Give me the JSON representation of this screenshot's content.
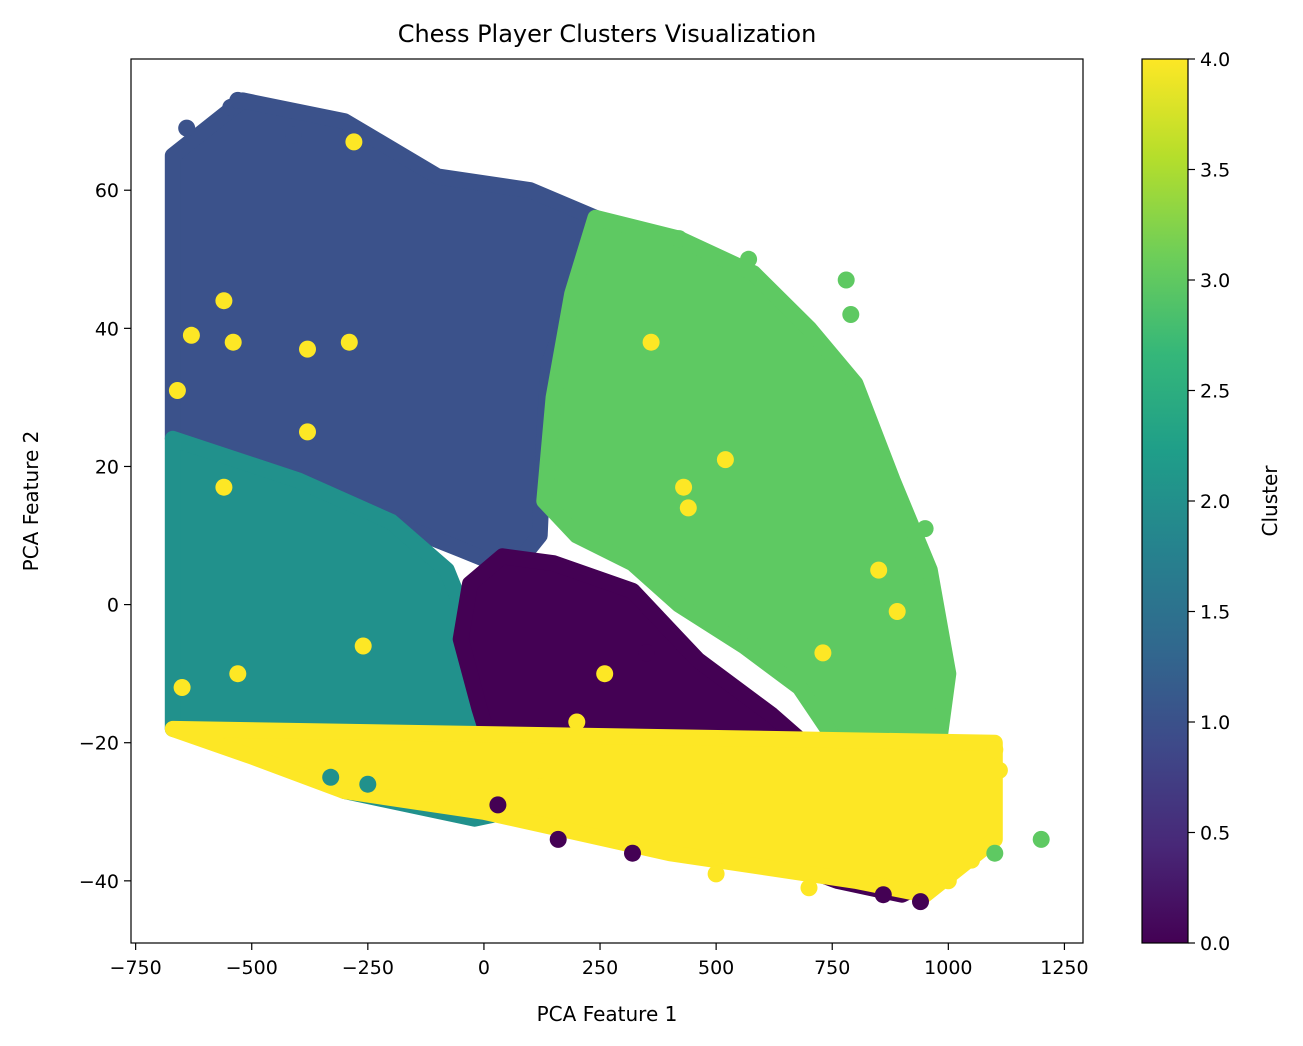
{
  "chart_data": {
    "type": "scatter",
    "title": "Chess Player Clusters Visualization",
    "xlabel": "PCA Feature 1",
    "ylabel": "PCA Feature 2",
    "xlim": [
      -760,
      1290
    ],
    "ylim": [
      -49,
      79
    ],
    "xticks": [
      -750,
      -500,
      -250,
      0,
      250,
      500,
      750,
      1000,
      1250
    ],
    "xtick_labels": [
      "−750",
      "−500",
      "−250",
      "0",
      "250",
      "500",
      "750",
      "1000",
      "1250"
    ],
    "yticks": [
      -40,
      -20,
      0,
      20,
      40,
      60
    ],
    "ytick_labels": [
      "−40",
      "−20",
      "0",
      "20",
      "40",
      "60"
    ],
    "grid": false,
    "colorbar": {
      "label": "Cluster",
      "range": [
        0.0,
        4.0
      ],
      "ticks": [
        0.0,
        0.5,
        1.0,
        1.5,
        2.0,
        2.5,
        3.0,
        3.5,
        4.0
      ],
      "tick_labels": [
        "0.0",
        "0.5",
        "1.0",
        "1.5",
        "2.0",
        "2.5",
        "3.0",
        "3.5",
        "4.0"
      ],
      "colormap": "viridis",
      "stops": [
        "#440154",
        "#482878",
        "#3e4989",
        "#31688e",
        "#26828e",
        "#1f9e89",
        "#35b779",
        "#6ece58",
        "#b5de2b",
        "#fde725"
      ]
    },
    "clusters": [
      {
        "cluster": 1,
        "color": "#3b528b",
        "region": [
          [
            -670,
            65
          ],
          [
            -520,
            73
          ],
          [
            -300,
            70
          ],
          [
            -100,
            62
          ],
          [
            100,
            60
          ],
          [
            240,
            56
          ],
          [
            200,
            45
          ],
          [
            140,
            35
          ],
          [
            130,
            25
          ],
          [
            120,
            10
          ],
          [
            60,
            5
          ],
          [
            -50,
            8
          ],
          [
            -200,
            12
          ],
          [
            -400,
            18
          ],
          [
            -670,
            24
          ]
        ]
      },
      {
        "cluster": 3,
        "color": "#5ec962",
        "region": [
          [
            240,
            56
          ],
          [
            420,
            53
          ],
          [
            580,
            48
          ],
          [
            700,
            40
          ],
          [
            800,
            32
          ],
          [
            880,
            18
          ],
          [
            960,
            5
          ],
          [
            1000,
            -10
          ],
          [
            980,
            -20
          ],
          [
            930,
            -33
          ],
          [
            860,
            -33
          ],
          [
            780,
            -22
          ],
          [
            680,
            -12
          ],
          [
            560,
            -6
          ],
          [
            420,
            0
          ],
          [
            320,
            6
          ],
          [
            200,
            10
          ],
          [
            130,
            15
          ],
          [
            150,
            30
          ],
          [
            190,
            45
          ]
        ]
      },
      {
        "cluster": 2,
        "color": "#21918c",
        "region": [
          [
            -670,
            24
          ],
          [
            -400,
            18
          ],
          [
            -200,
            12
          ],
          [
            -80,
            5
          ],
          [
            -20,
            -5
          ],
          [
            30,
            -20
          ],
          [
            50,
            -30
          ],
          [
            -20,
            -31
          ],
          [
            -300,
            -27
          ],
          [
            -500,
            -21
          ],
          [
            -670,
            -18
          ]
        ]
      },
      {
        "cluster": 0,
        "color": "#440154",
        "region": [
          [
            -30,
            3
          ],
          [
            40,
            7
          ],
          [
            150,
            6
          ],
          [
            320,
            2
          ],
          [
            460,
            -8
          ],
          [
            620,
            -16
          ],
          [
            790,
            -26
          ],
          [
            900,
            -34
          ],
          [
            960,
            -40
          ],
          [
            900,
            -42
          ],
          [
            760,
            -40
          ],
          [
            600,
            -36
          ],
          [
            400,
            -34
          ],
          [
            200,
            -31
          ],
          [
            50,
            -28
          ],
          [
            -10,
            -15
          ],
          [
            -50,
            -5
          ]
        ]
      },
      {
        "cluster": 4,
        "color": "#fde725",
        "band": [
          [
            -670,
            -18
          ],
          [
            -500,
            -22
          ],
          [
            -300,
            -27
          ],
          [
            0,
            -30
          ],
          [
            200,
            -33
          ],
          [
            400,
            -36
          ],
          [
            600,
            -38
          ],
          [
            800,
            -40
          ],
          [
            950,
            -42
          ],
          [
            1100,
            -34
          ],
          [
            1100,
            -20
          ]
        ]
      }
    ],
    "points": [
      {
        "x": 1200,
        "y": -34,
        "cluster": 3
      },
      {
        "x": 1100,
        "y": -21,
        "cluster": 4
      },
      {
        "x": 1110,
        "y": -24,
        "cluster": 4
      },
      {
        "x": 1100,
        "y": -36,
        "cluster": 3
      },
      {
        "x": 1050,
        "y": -37,
        "cluster": 4
      },
      {
        "x": 1000,
        "y": -40,
        "cluster": 4
      },
      {
        "x": 940,
        "y": -43,
        "cluster": 0
      },
      {
        "x": 960,
        "y": -3,
        "cluster": 3
      },
      {
        "x": 950,
        "y": 11,
        "cluster": 3
      },
      {
        "x": 780,
        "y": 47,
        "cluster": 3
      },
      {
        "x": 790,
        "y": 42,
        "cluster": 3
      },
      {
        "x": 900,
        "y": 12,
        "cluster": 3
      },
      {
        "x": 890,
        "y": -1,
        "cluster": 4
      },
      {
        "x": 850,
        "y": 5,
        "cluster": 4
      },
      {
        "x": 420,
        "y": 53,
        "cluster": 3
      },
      {
        "x": 570,
        "y": 50,
        "cluster": 3
      },
      {
        "x": 520,
        "y": 21,
        "cluster": 4
      },
      {
        "x": 440,
        "y": 14,
        "cluster": 4
      },
      {
        "x": 430,
        "y": 17,
        "cluster": 4
      },
      {
        "x": 360,
        "y": 38,
        "cluster": 4
      },
      {
        "x": 730,
        "y": -7,
        "cluster": 4
      },
      {
        "x": 510,
        "y": -30,
        "cluster": 4
      },
      {
        "x": 500,
        "y": -39,
        "cluster": 4
      },
      {
        "x": 350,
        "y": -7,
        "cluster": 0
      },
      {
        "x": 260,
        "y": -10,
        "cluster": 4
      },
      {
        "x": 200,
        "y": -17,
        "cluster": 4
      },
      {
        "x": 120,
        "y": -24,
        "cluster": 4
      },
      {
        "x": -545,
        "y": 72,
        "cluster": 1
      },
      {
        "x": -530,
        "y": 73,
        "cluster": 1
      },
      {
        "x": -640,
        "y": 69,
        "cluster": 1
      },
      {
        "x": -280,
        "y": 67,
        "cluster": 4
      },
      {
        "x": -410,
        "y": 68,
        "cluster": 1
      },
      {
        "x": -560,
        "y": 44,
        "cluster": 4
      },
      {
        "x": -630,
        "y": 39,
        "cluster": 4
      },
      {
        "x": -380,
        "y": 37,
        "cluster": 4
      },
      {
        "x": -540,
        "y": 38,
        "cluster": 4
      },
      {
        "x": -380,
        "y": 25,
        "cluster": 4
      },
      {
        "x": -290,
        "y": 38,
        "cluster": 4
      },
      {
        "x": -560,
        "y": 17,
        "cluster": 4
      },
      {
        "x": -660,
        "y": 31,
        "cluster": 4
      },
      {
        "x": -260,
        "y": -6,
        "cluster": 4
      },
      {
        "x": -650,
        "y": -12,
        "cluster": 4
      },
      {
        "x": -530,
        "y": -10,
        "cluster": 4
      },
      {
        "x": -250,
        "y": -26,
        "cluster": 2
      },
      {
        "x": -330,
        "y": -25,
        "cluster": 2
      },
      {
        "x": -90,
        "y": -28,
        "cluster": 4
      },
      {
        "x": 30,
        "y": -29,
        "cluster": 0
      },
      {
        "x": 160,
        "y": -34,
        "cluster": 0
      },
      {
        "x": 320,
        "y": -36,
        "cluster": 0
      },
      {
        "x": 700,
        "y": -41,
        "cluster": 4
      },
      {
        "x": 860,
        "y": -42,
        "cluster": 0
      }
    ]
  }
}
